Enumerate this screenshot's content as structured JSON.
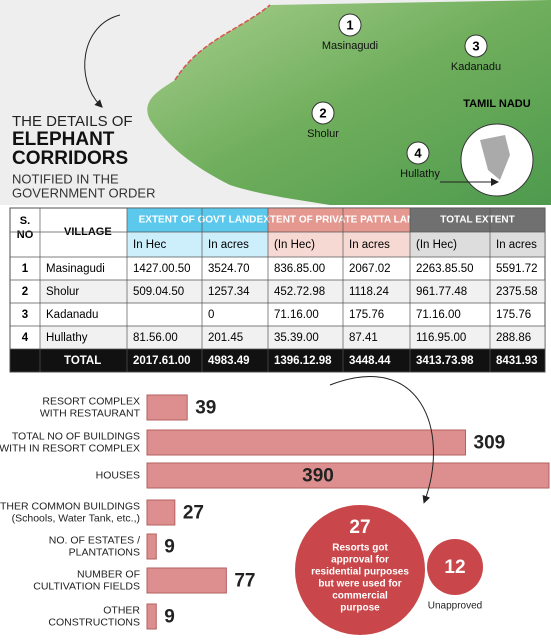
{
  "header": {
    "line1": "THE DETAILS OF",
    "title_lines": [
      "ELEPHANT",
      "CORRIDORS"
    ],
    "sub_lines": [
      "NOTIFIED IN THE",
      "GOVERNMENT ORDER"
    ]
  },
  "map": {
    "markers": [
      {
        "number": "1",
        "name": "Masinagudi"
      },
      {
        "number": "2",
        "name": "Sholur"
      },
      {
        "number": "3",
        "name": "Kadanadu"
      },
      {
        "number": "4",
        "name": "Hullathy"
      }
    ],
    "inset_label": "TAMIL NADU"
  },
  "table": {
    "sno_header": [
      "S.",
      "NO"
    ],
    "village_header": "VILLAGE",
    "groups": [
      "EXTENT OF GOVT LAND",
      "EXTENT OF PRIVATE PATTA LAND",
      "TOTAL EXTENT"
    ],
    "subheaders": [
      "In Hec",
      "In acres",
      "(In Hec)",
      "In acres",
      "(In Hec)",
      "In acres"
    ],
    "rows": [
      [
        "1",
        "Masinagudi",
        "1427.00.50",
        "3524.70",
        "836.85.00",
        "2067.02",
        "2263.85.50",
        "5591.72"
      ],
      [
        "2",
        "Sholur",
        "509.04.50",
        "1257.34",
        "452.72.98",
        "1118.24",
        "961.77.48",
        "2375.58"
      ],
      [
        "3",
        "Kadanadu",
        null,
        "0",
        "71.16.00",
        "175.76",
        "71.16.00",
        "175.76"
      ],
      [
        "4",
        "Hullathy",
        "81.56.00",
        "201.45",
        "35.39.00",
        "87.41",
        "116.95.00",
        "288.86"
      ]
    ],
    "total": [
      "TOTAL",
      "2017.61.00",
      "4983.49",
      "1396.12.98",
      "3448.44",
      "3413.73.98",
      "8431.93"
    ]
  },
  "chart_data": {
    "type": "bar",
    "orientation": "horizontal",
    "color": "#dc8f8e",
    "categories": [
      [
        "RESORT COMPLEX",
        "WITH RESTAURANT"
      ],
      [
        "TOTAL NO OF BUILDINGS",
        "WITH IN RESORT COMPLEX"
      ],
      [
        "HOUSES"
      ],
      [
        "OTHER COMMON BUILDINGS",
        "(Schools, Water Tank, etc.,)"
      ],
      [
        "NO. OF ESTATES /",
        "PLANTATIONS"
      ],
      [
        "NUMBER OF",
        "CULTIVATION FIELDS"
      ],
      [
        "OTHER",
        "CONSTRUCTIONS"
      ]
    ],
    "values": [
      39,
      309,
      390,
      27,
      9,
      77,
      9
    ]
  },
  "callouts": {
    "resorts": {
      "value": "27",
      "text_lines": [
        "Resorts got",
        "approval for",
        "residential purposes",
        "but were used for",
        "commercial",
        "purpose"
      ]
    },
    "unapproved": {
      "value": "12",
      "label": "Unapproved"
    }
  }
}
